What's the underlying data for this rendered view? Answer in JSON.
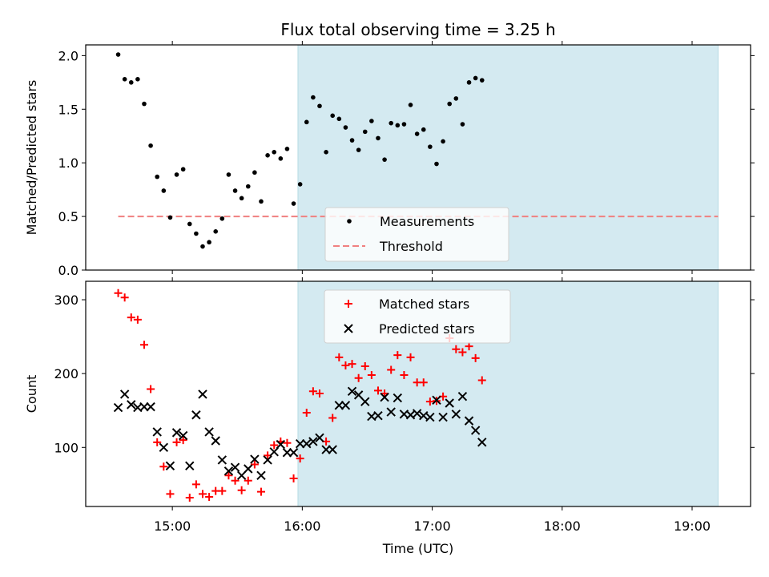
{
  "chart_data": [
    {
      "type": "scatter",
      "title": "Flux total observing time = 3.25 h",
      "xlabel": "",
      "ylabel": "Matched/Predicted stars",
      "xlim": [
        "14:20",
        "19:27"
      ],
      "ylim": [
        0,
        2.1
      ],
      "yticks": [
        "0.0",
        "0.5",
        "1.0",
        "1.5",
        "2.0"
      ],
      "xticks": [
        "15:00",
        "16:00",
        "17:00",
        "18:00",
        "19:00"
      ],
      "shaded_interval": [
        "15:58",
        "19:12"
      ],
      "shade_color": "#d4eaf1",
      "legend": {
        "position": "lower-center",
        "entries": [
          "Measurements",
          "Threshold"
        ]
      },
      "threshold": {
        "value": 0.5,
        "x": [
          "14:35",
          "19:12"
        ],
        "color": "#f08080"
      },
      "series": [
        {
          "name": "Measurements",
          "color": "#000000",
          "points": [
            [
              "14:35",
              2.01
            ],
            [
              "14:38",
              1.78
            ],
            [
              "14:41",
              1.75
            ],
            [
              "14:44",
              1.78
            ],
            [
              "14:47",
              1.55
            ],
            [
              "14:50",
              1.16
            ],
            [
              "14:53",
              0.87
            ],
            [
              "14:56",
              0.74
            ],
            [
              "14:59",
              0.49
            ],
            [
              "15:02",
              0.89
            ],
            [
              "15:05",
              0.94
            ],
            [
              "15:08",
              0.43
            ],
            [
              "15:11",
              0.34
            ],
            [
              "15:14",
              0.22
            ],
            [
              "15:17",
              0.26
            ],
            [
              "15:20",
              0.36
            ],
            [
              "15:23",
              0.48
            ],
            [
              "15:26",
              0.89
            ],
            [
              "15:29",
              0.74
            ],
            [
              "15:32",
              0.67
            ],
            [
              "15:35",
              0.78
            ],
            [
              "15:38",
              0.91
            ],
            [
              "15:41",
              0.64
            ],
            [
              "15:44",
              1.07
            ],
            [
              "15:47",
              1.1
            ],
            [
              "15:50",
              1.04
            ],
            [
              "15:53",
              1.13
            ],
            [
              "15:56",
              0.62
            ],
            [
              "15:59",
              0.8
            ],
            [
              "16:02",
              1.38
            ],
            [
              "16:05",
              1.61
            ],
            [
              "16:08",
              1.53
            ],
            [
              "16:11",
              1.1
            ],
            [
              "16:14",
              1.44
            ],
            [
              "16:17",
              1.41
            ],
            [
              "16:20",
              1.33
            ],
            [
              "16:23",
              1.21
            ],
            [
              "16:26",
              1.12
            ],
            [
              "16:29",
              1.29
            ],
            [
              "16:32",
              1.39
            ],
            [
              "16:35",
              1.23
            ],
            [
              "16:38",
              1.03
            ],
            [
              "16:41",
              1.37
            ],
            [
              "16:44",
              1.35
            ],
            [
              "16:47",
              1.36
            ],
            [
              "16:50",
              1.54
            ],
            [
              "16:53",
              1.27
            ],
            [
              "16:56",
              1.31
            ],
            [
              "16:59",
              1.15
            ],
            [
              "17:02",
              0.99
            ],
            [
              "17:05",
              1.2
            ],
            [
              "17:08",
              1.55
            ],
            [
              "17:11",
              1.6
            ],
            [
              "17:14",
              1.36
            ],
            [
              "17:17",
              1.75
            ],
            [
              "17:20",
              1.79
            ],
            [
              "17:23",
              1.77
            ]
          ]
        }
      ]
    },
    {
      "type": "scatter",
      "title": "",
      "xlabel": "Time (UTC)",
      "ylabel": "Count",
      "xlim": [
        "14:20",
        "19:27"
      ],
      "ylim": [
        20,
        325
      ],
      "yticks": [
        "100",
        "200",
        "300"
      ],
      "xticks": [
        "15:00",
        "16:00",
        "17:00",
        "18:00",
        "19:00"
      ],
      "shaded_interval": [
        "15:58",
        "19:12"
      ],
      "shade_color": "#d4eaf1",
      "legend": {
        "position": "upper-center",
        "entries": [
          "Matched stars",
          "Predicted stars"
        ]
      },
      "series": [
        {
          "name": "Matched stars",
          "marker": "plus",
          "color": "#ff0000",
          "points": [
            [
              "14:35",
              309
            ],
            [
              "14:38",
              303
            ],
            [
              "14:41",
              276
            ],
            [
              "14:44",
              273
            ],
            [
              "14:47",
              239
            ],
            [
              "14:50",
              179
            ],
            [
              "14:53",
              107
            ],
            [
              "14:56",
              74
            ],
            [
              "14:59",
              37
            ],
            [
              "15:02",
              107
            ],
            [
              "15:05",
              110
            ],
            [
              "15:08",
              32
            ],
            [
              "15:11",
              50
            ],
            [
              "15:14",
              37
            ],
            [
              "15:17",
              33
            ],
            [
              "15:20",
              41
            ],
            [
              "15:23",
              41
            ],
            [
              "15:26",
              62
            ],
            [
              "15:29",
              55
            ],
            [
              "15:32",
              42
            ],
            [
              "15:35",
              55
            ],
            [
              "15:38",
              77
            ],
            [
              "15:41",
              40
            ],
            [
              "15:44",
              89
            ],
            [
              "15:47",
              103
            ],
            [
              "15:50",
              108
            ],
            [
              "15:53",
              106
            ],
            [
              "15:56",
              58
            ],
            [
              "15:59",
              85
            ],
            [
              "16:02",
              147
            ],
            [
              "16:05",
              176
            ],
            [
              "16:08",
              173
            ],
            [
              "16:11",
              108
            ],
            [
              "16:14",
              140
            ],
            [
              "16:17",
              222
            ],
            [
              "16:20",
              211
            ],
            [
              "16:23",
              213
            ],
            [
              "16:26",
              194
            ],
            [
              "16:29",
              210
            ],
            [
              "16:32",
              198
            ],
            [
              "16:35",
              177
            ],
            [
              "16:38",
              173
            ],
            [
              "16:41",
              205
            ],
            [
              "16:44",
              225
            ],
            [
              "16:47",
              198
            ],
            [
              "16:50",
              222
            ],
            [
              "16:53",
              188
            ],
            [
              "16:56",
              188
            ],
            [
              "16:59",
              162
            ],
            [
              "17:02",
              163
            ],
            [
              "17:05",
              169
            ],
            [
              "17:08",
              248
            ],
            [
              "17:11",
              233
            ],
            [
              "17:14",
              229
            ],
            [
              "17:17",
              237
            ],
            [
              "17:20",
              221
            ],
            [
              "17:23",
              191
            ]
          ]
        },
        {
          "name": "Predicted stars",
          "marker": "x",
          "color": "#000000",
          "points": [
            [
              "14:35",
              154
            ],
            [
              "14:38",
              172
            ],
            [
              "14:41",
              158
            ],
            [
              "14:44",
              154
            ],
            [
              "14:47",
              155
            ],
            [
              "14:50",
              155
            ],
            [
              "14:53",
              121
            ],
            [
              "14:56",
              100
            ],
            [
              "14:59",
              75
            ],
            [
              "15:02",
              120
            ],
            [
              "15:05",
              116
            ],
            [
              "15:08",
              75
            ],
            [
              "15:11",
              144
            ],
            [
              "15:14",
              172
            ],
            [
              "15:17",
              121
            ],
            [
              "15:20",
              109
            ],
            [
              "15:23",
              83
            ],
            [
              "15:26",
              68
            ],
            [
              "15:29",
              73
            ],
            [
              "15:32",
              62
            ],
            [
              "15:35",
              71
            ],
            [
              "15:38",
              84
            ],
            [
              "15:41",
              62
            ],
            [
              "15:44",
              83
            ],
            [
              "15:47",
              94
            ],
            [
              "15:50",
              104
            ],
            [
              "15:53",
              93
            ],
            [
              "15:56",
              93
            ],
            [
              "15:59",
              105
            ],
            [
              "16:02",
              105
            ],
            [
              "16:05",
              108
            ],
            [
              "16:08",
              113
            ],
            [
              "16:11",
              97
            ],
            [
              "16:14",
              97
            ],
            [
              "16:17",
              157
            ],
            [
              "16:20",
              157
            ],
            [
              "16:23",
              176
            ],
            [
              "16:26",
              171
            ],
            [
              "16:29",
              162
            ],
            [
              "16:32",
              142
            ],
            [
              "16:35",
              143
            ],
            [
              "16:38",
              168
            ],
            [
              "16:41",
              148
            ],
            [
              "16:44",
              167
            ],
            [
              "16:47",
              145
            ],
            [
              "16:50",
              144
            ],
            [
              "16:53",
              146
            ],
            [
              "16:56",
              143
            ],
            [
              "16:59",
              141
            ],
            [
              "17:02",
              164
            ],
            [
              "17:05",
              141
            ],
            [
              "17:08",
              160
            ],
            [
              "17:11",
              145
            ],
            [
              "17:14",
              169
            ],
            [
              "17:17",
              136
            ],
            [
              "17:20",
              123
            ],
            [
              "17:23",
              107
            ]
          ]
        }
      ]
    }
  ]
}
